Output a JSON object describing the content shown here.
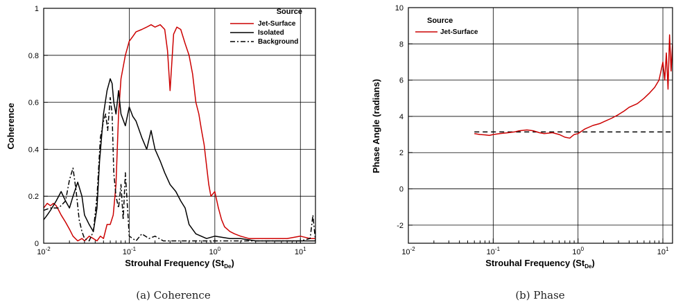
{
  "chart_data": [
    {
      "type": "line",
      "caption": "(a)  Coherence",
      "xlabel_main": "Strouhal Frequency (St",
      "xlabel_sub": "De",
      "xlabel_close": ")",
      "ylabel": "Coherence",
      "xscale": "log",
      "xlim": [
        0.01,
        15
      ],
      "ylim": [
        0,
        1
      ],
      "x_ticks": [
        0.01,
        0.1,
        1,
        10
      ],
      "x_tick_base": "10",
      "x_tick_exps": [
        "-2",
        "-1",
        "0",
        "1"
      ],
      "y_ticks": [
        0,
        0.2,
        0.4,
        0.6,
        0.8,
        1
      ],
      "y_tick_labels": [
        "0",
        "0.2",
        "0.4",
        "0.6",
        "0.8",
        "1"
      ],
      "grid": true,
      "legend_title": "Source",
      "legend_placement": "top-right",
      "series": [
        {
          "name": "Jet-Surface",
          "color": "#cc0000",
          "dash": "solid",
          "x": [
            0.01,
            0.011,
            0.012,
            0.013,
            0.014,
            0.015,
            0.016,
            0.018,
            0.02,
            0.022,
            0.025,
            0.028,
            0.03,
            0.034,
            0.038,
            0.042,
            0.046,
            0.05,
            0.055,
            0.06,
            0.065,
            0.07,
            0.075,
            0.08,
            0.09,
            0.1,
            0.11,
            0.12,
            0.14,
            0.16,
            0.18,
            0.2,
            0.23,
            0.26,
            0.28,
            0.3,
            0.33,
            0.36,
            0.4,
            0.45,
            0.5,
            0.55,
            0.6,
            0.65,
            0.7,
            0.75,
            0.8,
            0.85,
            0.9,
            1.0,
            1.1,
            1.2,
            1.3,
            1.5,
            1.7,
            2.0,
            2.5,
            3.0,
            4.0,
            5.0,
            7.0,
            10.0,
            13.0,
            15.0
          ],
          "y": [
            0.15,
            0.17,
            0.16,
            0.17,
            0.16,
            0.14,
            0.12,
            0.09,
            0.06,
            0.03,
            0.01,
            0.02,
            0.01,
            0.03,
            0.02,
            0.01,
            0.03,
            0.02,
            0.08,
            0.08,
            0.12,
            0.25,
            0.55,
            0.7,
            0.8,
            0.86,
            0.88,
            0.9,
            0.91,
            0.92,
            0.93,
            0.92,
            0.93,
            0.91,
            0.82,
            0.65,
            0.89,
            0.92,
            0.91,
            0.85,
            0.8,
            0.72,
            0.6,
            0.55,
            0.48,
            0.42,
            0.33,
            0.25,
            0.2,
            0.22,
            0.15,
            0.1,
            0.07,
            0.05,
            0.04,
            0.03,
            0.02,
            0.02,
            0.02,
            0.02,
            0.02,
            0.03,
            0.02,
            0.02
          ]
        },
        {
          "name": "Isolated",
          "color": "#000000",
          "dash": "solid",
          "x": [
            0.01,
            0.011,
            0.012,
            0.014,
            0.016,
            0.018,
            0.02,
            0.022,
            0.025,
            0.028,
            0.03,
            0.034,
            0.038,
            0.042,
            0.045,
            0.05,
            0.055,
            0.06,
            0.063,
            0.066,
            0.07,
            0.075,
            0.08,
            0.09,
            0.1,
            0.11,
            0.12,
            0.14,
            0.16,
            0.18,
            0.2,
            0.23,
            0.26,
            0.3,
            0.35,
            0.4,
            0.45,
            0.5,
            0.6,
            0.8,
            1.0,
            1.5,
            2.0,
            3.0,
            5.0,
            10.0,
            15.0
          ],
          "y": [
            0.1,
            0.12,
            0.14,
            0.18,
            0.22,
            0.18,
            0.15,
            0.2,
            0.26,
            0.2,
            0.12,
            0.08,
            0.05,
            0.15,
            0.35,
            0.55,
            0.65,
            0.7,
            0.68,
            0.6,
            0.55,
            0.65,
            0.55,
            0.5,
            0.58,
            0.54,
            0.52,
            0.45,
            0.4,
            0.48,
            0.4,
            0.35,
            0.3,
            0.25,
            0.22,
            0.18,
            0.15,
            0.08,
            0.04,
            0.02,
            0.03,
            0.02,
            0.02,
            0.01,
            0.01,
            0.01,
            0.01
          ]
        },
        {
          "name": "Background",
          "color": "#000000",
          "dash": "dashdot",
          "x": [
            0.01,
            0.012,
            0.015,
            0.018,
            0.02,
            0.022,
            0.024,
            0.026,
            0.028,
            0.03,
            0.034,
            0.038,
            0.042,
            0.046,
            0.05,
            0.053,
            0.056,
            0.06,
            0.063,
            0.066,
            0.07,
            0.075,
            0.08,
            0.085,
            0.09,
            0.1,
            0.11,
            0.12,
            0.14,
            0.17,
            0.2,
            0.25,
            0.3,
            0.4,
            0.6,
            1.0,
            2.0,
            5.0,
            10.0,
            13.0,
            14.0,
            15.0
          ],
          "y": [
            0.14,
            0.15,
            0.15,
            0.18,
            0.27,
            0.32,
            0.22,
            0.1,
            0.05,
            0.02,
            0.01,
            0.05,
            0.2,
            0.45,
            0.52,
            0.55,
            0.48,
            0.62,
            0.55,
            0.3,
            0.2,
            0.15,
            0.25,
            0.1,
            0.3,
            0.03,
            0.02,
            0.01,
            0.04,
            0.02,
            0.03,
            0.01,
            0.01,
            0.01,
            0.01,
            0.01,
            0.01,
            0.01,
            0.01,
            0.02,
            0.12,
            0.01
          ]
        }
      ]
    },
    {
      "type": "line",
      "caption": "(b)  Phase",
      "xlabel_main": "Strouhal Frequency (St",
      "xlabel_sub": "De",
      "xlabel_close": ")",
      "ylabel": "Phase Angle (radians)",
      "xscale": "log",
      "xlim": [
        0.01,
        13
      ],
      "ylim": [
        -3,
        10
      ],
      "x_ticks": [
        0.01,
        0.1,
        1,
        10
      ],
      "x_tick_base": "10",
      "x_tick_exps": [
        "-2",
        "-1",
        "0",
        "1"
      ],
      "y_ticks": [
        -2,
        0,
        2,
        4,
        6,
        8,
        10
      ],
      "y_tick_labels": [
        "-2",
        "0",
        "2",
        "4",
        "6",
        "8",
        "10"
      ],
      "grid": true,
      "legend_title": "Source",
      "legend_placement": "top-left",
      "reference_line": {
        "y": 3.14159,
        "color": "#000000",
        "dash": "dashed"
      },
      "series": [
        {
          "name": "Jet-Surface",
          "color": "#cc0000",
          "dash": "solid",
          "x": [
            0.06,
            0.07,
            0.08,
            0.09,
            0.1,
            0.12,
            0.15,
            0.18,
            0.2,
            0.25,
            0.3,
            0.35,
            0.4,
            0.5,
            0.6,
            0.7,
            0.8,
            0.9,
            1.0,
            1.2,
            1.5,
            1.8,
            2.0,
            2.5,
            3.0,
            3.5,
            4.0,
            5.0,
            6.0,
            7.0,
            8.0,
            9.0,
            10.0,
            10.5,
            11.0,
            11.5,
            12.0,
            12.5,
            13.0
          ],
          "y": [
            3.05,
            3.0,
            2.98,
            2.95,
            3.0,
            3.05,
            3.1,
            3.15,
            3.2,
            3.25,
            3.2,
            3.1,
            3.05,
            3.1,
            3.0,
            2.85,
            2.8,
            3.0,
            3.05,
            3.3,
            3.5,
            3.6,
            3.7,
            3.9,
            4.1,
            4.3,
            4.5,
            4.7,
            5.0,
            5.3,
            5.6,
            6.0,
            7.0,
            6.0,
            7.5,
            5.5,
            8.5,
            6.5,
            8.0
          ]
        }
      ]
    }
  ]
}
